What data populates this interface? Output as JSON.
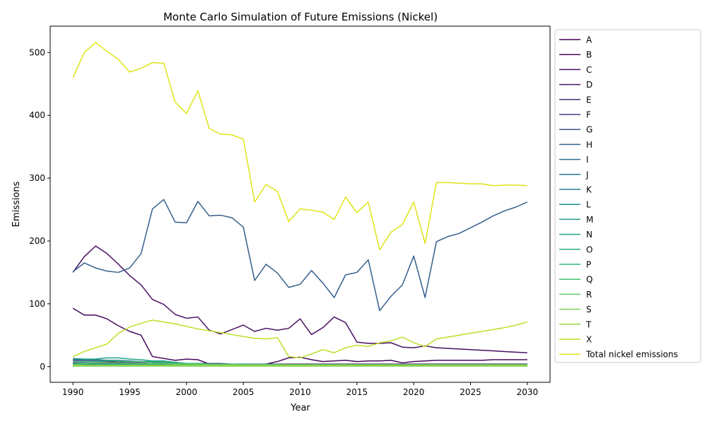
{
  "chart_data": {
    "type": "line",
    "title": "Monte Carlo Simulation of Future Emissions (Nickel)",
    "xlabel": "Year",
    "ylabel": "Emissions",
    "xlim": [
      1988,
      2032
    ],
    "ylim": [
      -25,
      542
    ],
    "xticks": [
      1990,
      1995,
      2000,
      2005,
      2010,
      2015,
      2020,
      2025,
      2030
    ],
    "yticks": [
      0,
      100,
      200,
      300,
      400,
      500
    ],
    "legend_position": "outside right",
    "grid": false,
    "x": [
      1990,
      1991,
      1992,
      1993,
      1994,
      1995,
      1996,
      1997,
      1998,
      1999,
      2000,
      2001,
      2002,
      2003,
      2004,
      2005,
      2006,
      2007,
      2008,
      2009,
      2010,
      2011,
      2012,
      2013,
      2014,
      2015,
      2016,
      2017,
      2018,
      2019,
      2020,
      2021,
      2022,
      2023,
      2024,
      2025,
      2026,
      2027,
      2028,
      2029,
      2030
    ],
    "series": [
      {
        "name": "A",
        "color": "#440154",
        "values": [
          5,
          5,
          6,
          6,
          6,
          5,
          5,
          4,
          4,
          4,
          4,
          4,
          4,
          4,
          4,
          4,
          4,
          4,
          4,
          4,
          4,
          4,
          4,
          4,
          4,
          4,
          4,
          4,
          4,
          4,
          4,
          4,
          4,
          4,
          4,
          4,
          4,
          4,
          4,
          4,
          4
        ]
      },
      {
        "name": "B",
        "color": "#46085c",
        "values": [
          93,
          82,
          82,
          76,
          65,
          56,
          50,
          16,
          13,
          10,
          12,
          11,
          4,
          4,
          4,
          4,
          4,
          4,
          8,
          14,
          15,
          11,
          8,
          9,
          10,
          8,
          9,
          9,
          10,
          6,
          8,
          9,
          10,
          10,
          10,
          10,
          10,
          11,
          11,
          11,
          11
        ]
      },
      {
        "name": "C",
        "color": "#471063",
        "values": [
          150,
          175,
          192,
          180,
          163,
          145,
          130,
          107,
          99,
          83,
          77,
          79,
          58,
          52,
          59,
          66,
          56,
          61,
          58,
          61,
          76,
          51,
          62,
          79,
          70,
          39,
          37,
          37,
          38,
          31,
          30,
          33,
          30,
          29,
          28,
          27,
          26,
          25,
          24,
          23,
          22
        ]
      },
      {
        "name": "D",
        "color": "#48186a",
        "values": [
          8,
          8,
          8,
          8,
          7,
          6,
          6,
          5,
          5,
          4,
          3,
          3,
          3,
          3,
          3,
          3,
          3,
          3,
          3,
          3,
          3,
          3,
          3,
          3,
          3,
          3,
          3,
          3,
          3,
          3,
          3,
          3,
          3,
          3,
          3,
          3,
          3,
          3,
          3,
          3,
          3
        ]
      },
      {
        "name": "E",
        "color": "#472d7b",
        "values": [
          3,
          3,
          3,
          3,
          3,
          3,
          3,
          3,
          3,
          3,
          2,
          2,
          2,
          2,
          2,
          2,
          2,
          2,
          2,
          2,
          2,
          2,
          2,
          2,
          2,
          2,
          2,
          2,
          2,
          2,
          2,
          2,
          2,
          2,
          2,
          2,
          2,
          2,
          2,
          2,
          2
        ]
      },
      {
        "name": "F",
        "color": "#433e85",
        "values": [
          10,
          10,
          10,
          10,
          9,
          8,
          8,
          7,
          6,
          6,
          5,
          5,
          5,
          5,
          4,
          4,
          4,
          4,
          4,
          3,
          3,
          3,
          3,
          3,
          3,
          3,
          3,
          3,
          3,
          3,
          3,
          3,
          3,
          3,
          3,
          3,
          3,
          3,
          3,
          3,
          3
        ]
      },
      {
        "name": "G",
        "color": "#3b528b",
        "values": [
          2,
          2,
          2,
          2,
          2,
          2,
          2,
          2,
          2,
          2,
          2,
          2,
          2,
          2,
          2,
          2,
          2,
          2,
          2,
          2,
          2,
          2,
          2,
          2,
          2,
          2,
          2,
          2,
          2,
          2,
          2,
          2,
          2,
          2,
          2,
          2,
          2,
          2,
          2,
          2,
          2
        ]
      },
      {
        "name": "H",
        "color": "#355f8d",
        "values": [
          151,
          165,
          157,
          152,
          150,
          157,
          180,
          251,
          266,
          230,
          229,
          263,
          240,
          241,
          237,
          222,
          137,
          163,
          149,
          126,
          131,
          153,
          133,
          110,
          146,
          150,
          170,
          89,
          112,
          130,
          176,
          110,
          199,
          207,
          212,
          221,
          230,
          240,
          248,
          254,
          262
        ]
      },
      {
        "name": "I",
        "color": "#2f6c8e",
        "values": [
          6,
          6,
          6,
          6,
          6,
          5,
          5,
          5,
          4,
          4,
          4,
          4,
          4,
          4,
          4,
          4,
          4,
          4,
          3,
          3,
          3,
          3,
          3,
          3,
          3,
          3,
          3,
          3,
          3,
          3,
          3,
          3,
          3,
          3,
          3,
          3,
          3,
          3,
          3,
          3,
          3
        ]
      },
      {
        "name": "J",
        "color": "#2a788e",
        "values": [
          12,
          11,
          11,
          10,
          10,
          9,
          8,
          8,
          7,
          6,
          5,
          5,
          4,
          4,
          4,
          4,
          3,
          3,
          3,
          3,
          3,
          3,
          3,
          3,
          3,
          3,
          3,
          3,
          3,
          3,
          3,
          3,
          3,
          3,
          3,
          3,
          3,
          3,
          3,
          3,
          3
        ]
      },
      {
        "name": "K",
        "color": "#25848e",
        "values": [
          4,
          4,
          4,
          4,
          4,
          4,
          4,
          4,
          4,
          3,
          3,
          3,
          3,
          3,
          3,
          3,
          3,
          3,
          3,
          3,
          3,
          3,
          3,
          3,
          3,
          3,
          3,
          3,
          3,
          3,
          3,
          3,
          3,
          3,
          3,
          3,
          3,
          3,
          3,
          3,
          3
        ]
      },
      {
        "name": "L",
        "color": "#21918c",
        "values": [
          1,
          1,
          1,
          1,
          1,
          1,
          1,
          1,
          1,
          1,
          1,
          1,
          1,
          1,
          1,
          1,
          1,
          1,
          1,
          1,
          1,
          1,
          1,
          1,
          1,
          1,
          1,
          1,
          1,
          1,
          1,
          1,
          1,
          1,
          1,
          1,
          1,
          1,
          1,
          1,
          1
        ]
      },
      {
        "name": "M",
        "color": "#1e9c89",
        "values": [
          2,
          2,
          2,
          2,
          2,
          2,
          2,
          2,
          2,
          2,
          2,
          2,
          2,
          2,
          2,
          2,
          2,
          2,
          2,
          2,
          2,
          2,
          2,
          2,
          2,
          2,
          2,
          2,
          2,
          2,
          2,
          2,
          2,
          2,
          2,
          2,
          2,
          2,
          2,
          2,
          2
        ]
      },
      {
        "name": "N",
        "color": "#20a486",
        "values": [
          13,
          12,
          12,
          14,
          14,
          12,
          11,
          9,
          9,
          7,
          5,
          5,
          4,
          4,
          3,
          3,
          3,
          3,
          3,
          2,
          2,
          2,
          2,
          2,
          2,
          2,
          2,
          2,
          2,
          2,
          2,
          2,
          2,
          2,
          2,
          2,
          2,
          2,
          2,
          2,
          2
        ]
      },
      {
        "name": "O",
        "color": "#28ae80",
        "values": [
          3,
          3,
          3,
          3,
          3,
          3,
          3,
          3,
          3,
          3,
          3,
          3,
          3,
          3,
          2,
          2,
          2,
          2,
          2,
          2,
          2,
          2,
          2,
          2,
          2,
          2,
          2,
          2,
          2,
          2,
          2,
          2,
          2,
          2,
          2,
          2,
          2,
          2,
          2,
          2,
          2
        ]
      },
      {
        "name": "P",
        "color": "#35b779",
        "values": [
          8,
          8,
          8,
          9,
          9,
          8,
          8,
          7,
          7,
          6,
          5,
          5,
          4,
          4,
          4,
          3,
          3,
          3,
          3,
          3,
          3,
          3,
          3,
          3,
          3,
          3,
          3,
          3,
          3,
          3,
          3,
          3,
          3,
          3,
          3,
          3,
          3,
          3,
          3,
          3,
          3
        ]
      },
      {
        "name": "Q",
        "color": "#44bf70",
        "values": [
          1,
          1,
          1,
          1,
          1,
          1,
          1,
          1,
          1,
          1,
          1,
          1,
          1,
          1,
          1,
          1,
          1,
          1,
          1,
          1,
          1,
          1,
          1,
          1,
          1,
          1,
          1,
          1,
          1,
          1,
          1,
          1,
          1,
          1,
          1,
          1,
          1,
          1,
          1,
          1,
          1
        ]
      },
      {
        "name": "R",
        "color": "#5ec962",
        "values": [
          4,
          5,
          6,
          6,
          6,
          5,
          5,
          5,
          5,
          4,
          4,
          4,
          3,
          3,
          3,
          3,
          3,
          3,
          3,
          3,
          3,
          3,
          3,
          3,
          3,
          3,
          3,
          3,
          3,
          3,
          3,
          3,
          3,
          3,
          3,
          3,
          3,
          3,
          3,
          3,
          3
        ]
      },
      {
        "name": "S",
        "color": "#7ad151",
        "values": [
          1,
          1,
          1,
          1,
          1,
          1,
          1,
          1,
          1,
          1,
          1,
          1,
          1,
          1,
          1,
          1,
          1,
          1,
          1,
          1,
          1,
          1,
          1,
          1,
          1,
          1,
          1,
          1,
          1,
          1,
          1,
          1,
          1,
          1,
          1,
          1,
          1,
          1,
          1,
          1,
          1
        ]
      },
      {
        "name": "T",
        "color": "#9bd93c",
        "values": [
          2,
          2,
          2,
          2,
          2,
          2,
          2,
          2,
          2,
          2,
          2,
          2,
          2,
          2,
          2,
          2,
          2,
          2,
          2,
          2,
          2,
          2,
          2,
          2,
          2,
          2,
          2,
          2,
          2,
          2,
          2,
          2,
          2,
          2,
          2,
          2,
          2,
          2,
          2,
          2,
          2
        ]
      },
      {
        "name": "X",
        "color": "#bddf26",
        "values": [
          16,
          24,
          30,
          36,
          53,
          63,
          69,
          74,
          71,
          68,
          64,
          60,
          57,
          54,
          51,
          48,
          45,
          44,
          46,
          16,
          14,
          20,
          27,
          22,
          30,
          34,
          32,
          38,
          41,
          47,
          38,
          32,
          44,
          47,
          50,
          53,
          56,
          59,
          62,
          66,
          71
        ]
      },
      {
        "name": "Total nickel emissions",
        "color": "#dfe318",
        "values": [
          460,
          500,
          516,
          502,
          489,
          469,
          475,
          484,
          483,
          421,
          403,
          439,
          379,
          370,
          369,
          362,
          262,
          290,
          279,
          231,
          251,
          249,
          246,
          234,
          270,
          245,
          262,
          186,
          214,
          226,
          262,
          196,
          293,
          293,
          292,
          291,
          291,
          288,
          289,
          289,
          288
        ]
      }
    ]
  }
}
